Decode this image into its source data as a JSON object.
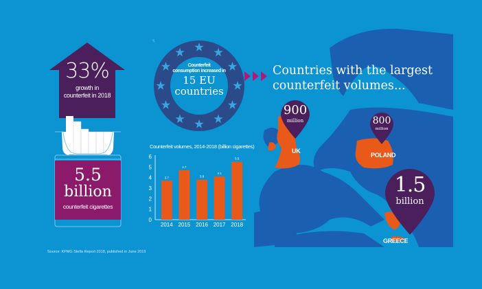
{
  "colors": {
    "background": "#0b93d2",
    "map_land": "#1b5fb0",
    "highlight_orange": "#e8591a",
    "purple": "#4a1f5c",
    "magenta": "#8c1a6a",
    "eu_ring": "#2a4a8a",
    "star_blue": "#3aa6e0"
  },
  "growth": {
    "percent": "33%",
    "label_line1": "growth in",
    "label_line2": "counterfeit in 2018"
  },
  "total": {
    "number": "5.5",
    "unit": "billion",
    "label": "counterfeit cigarettes"
  },
  "eu_badge": {
    "small_line1": "Counterfeit",
    "small_line2": "consumption increased in",
    "big_line1": "15 EU",
    "big_line2": "countries"
  },
  "map": {
    "title_line1": "Countries with the largest",
    "title_line2": "counterfeit volumes...",
    "pins": [
      {
        "country": "UK",
        "value": "900",
        "unit": "million"
      },
      {
        "country": "POLAND",
        "value": "800",
        "unit": "million"
      },
      {
        "country": "GREECE",
        "value": "1.5",
        "unit": "billion"
      }
    ]
  },
  "chart_data": {
    "type": "bar",
    "title": "Counterfeit volumes, 2014-2018 (billion cigarettes)",
    "categories": [
      "2014",
      "2015",
      "2016",
      "2017",
      "2018"
    ],
    "values": [
      3.7,
      4.7,
      3.8,
      4.1,
      5.5
    ],
    "value_labels": [
      "3.7",
      "4.7",
      "3.8",
      "4.1",
      "5.5"
    ],
    "yticks": [
      "0",
      "1",
      "2",
      "3",
      "4",
      "5",
      "6"
    ],
    "ylim": [
      0,
      6
    ],
    "xlabel": "",
    "ylabel": "",
    "grid": false,
    "bar_color": "#e8591a"
  },
  "source": "Source: KPMG Stella Report 2018, published in June 2019"
}
